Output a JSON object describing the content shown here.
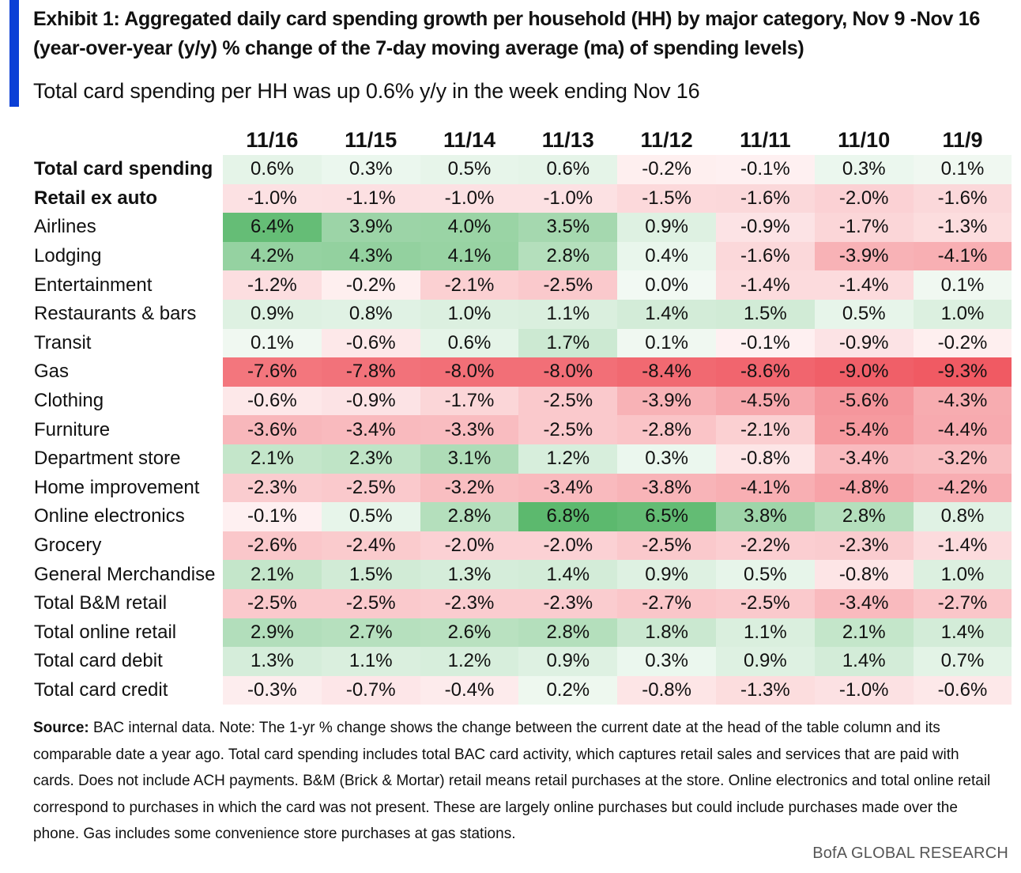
{
  "title": "Exhibit 1: Aggregated daily card spending growth per household (HH) by major category, Nov 9 -Nov 16 (year-over-year (y/y) % change of the 7-day moving average (ma) of spending levels)",
  "subtitle": "Total card spending per HH was up 0.6% y/y in the week ending Nov 16",
  "chart_data": {
    "type": "heatmap",
    "unit": "%",
    "columns": [
      "11/16",
      "11/15",
      "11/14",
      "11/13",
      "11/12",
      "11/11",
      "11/10",
      "11/9"
    ],
    "rows": [
      {
        "label": "Total card spending",
        "bold": true,
        "values": [
          0.6,
          0.3,
          0.5,
          0.6,
          -0.2,
          -0.1,
          0.3,
          0.1
        ]
      },
      {
        "label": "Retail ex auto",
        "bold": true,
        "values": [
          -1.0,
          -1.1,
          -1.0,
          -1.0,
          -1.5,
          -1.6,
          -2.0,
          -1.6
        ]
      },
      {
        "label": "Airlines",
        "values": [
          6.4,
          3.9,
          4.0,
          3.5,
          0.9,
          -0.9,
          -1.7,
          -1.3
        ]
      },
      {
        "label": "Lodging",
        "values": [
          4.2,
          4.3,
          4.1,
          2.8,
          0.4,
          -1.6,
          -3.9,
          -4.1
        ]
      },
      {
        "label": "Entertainment",
        "values": [
          -1.2,
          -0.2,
          -2.1,
          -2.5,
          0.0,
          -1.4,
          -1.4,
          0.1
        ]
      },
      {
        "label": "Restaurants & bars",
        "values": [
          0.9,
          0.8,
          1.0,
          1.1,
          1.4,
          1.5,
          0.5,
          1.0
        ]
      },
      {
        "label": "Transit",
        "values": [
          0.1,
          -0.6,
          0.6,
          1.7,
          0.1,
          -0.1,
          -0.9,
          -0.2
        ]
      },
      {
        "label": "Gas",
        "values": [
          -7.6,
          -7.8,
          -8.0,
          -8.0,
          -8.4,
          -8.6,
          -9.0,
          -9.3
        ]
      },
      {
        "label": "Clothing",
        "values": [
          -0.6,
          -0.9,
          -1.7,
          -2.5,
          -3.9,
          -4.5,
          -5.6,
          -4.3
        ]
      },
      {
        "label": "Furniture",
        "values": [
          -3.6,
          -3.4,
          -3.3,
          -2.5,
          -2.8,
          -2.1,
          -5.4,
          -4.4
        ]
      },
      {
        "label": "Department store",
        "values": [
          2.1,
          2.3,
          3.1,
          1.2,
          0.3,
          -0.8,
          -3.4,
          -3.2
        ]
      },
      {
        "label": "Home improvement",
        "values": [
          -2.3,
          -2.5,
          -3.2,
          -3.4,
          -3.8,
          -4.1,
          -4.8,
          -4.2
        ]
      },
      {
        "label": "Online electronics",
        "values": [
          -0.1,
          0.5,
          2.8,
          6.8,
          6.5,
          3.8,
          2.8,
          0.8
        ]
      },
      {
        "label": "Grocery",
        "values": [
          -2.6,
          -2.4,
          -2.0,
          -2.0,
          -2.5,
          -2.2,
          -2.3,
          -1.4
        ]
      },
      {
        "label": "General Merchandise",
        "values": [
          2.1,
          1.5,
          1.3,
          1.4,
          0.9,
          0.5,
          -0.8,
          1.0
        ]
      },
      {
        "label": "Total B&M retail",
        "values": [
          -2.5,
          -2.5,
          -2.3,
          -2.3,
          -2.7,
          -2.5,
          -3.4,
          -2.7
        ]
      },
      {
        "label": "Total online retail",
        "values": [
          2.9,
          2.7,
          2.6,
          2.8,
          1.8,
          1.1,
          2.1,
          1.4
        ]
      },
      {
        "label": "Total card debit",
        "values": [
          1.3,
          1.1,
          1.2,
          0.9,
          0.3,
          0.9,
          1.4,
          0.7
        ]
      },
      {
        "label": "Total card credit",
        "values": [
          -0.3,
          -0.7,
          -0.4,
          0.2,
          -0.8,
          -1.3,
          -1.0,
          -0.6
        ]
      }
    ],
    "color_scale": {
      "negative": "#f05a63",
      "neutral": "#ffffff",
      "positive": "#5cb96e"
    }
  },
  "footnote": {
    "source_label": "Source:",
    "text": " BAC internal data. Note: The 1-yr % change shows the change between the current date at the head of the table column and its comparable date a year ago. Total card spending includes total BAC card activity, which captures retail sales and services that are paid with cards. Does not include ACH payments. B&M (Brick & Mortar) retail means retail purchases at the store. Online electronics and total online retail correspond to purchases in which the card was not present. These are largely online purchases but could include purchases made over the phone. Gas includes some convenience store purchases at gas stations."
  },
  "brand": "BofA GLOBAL RESEARCH",
  "colors": {
    "accent": "#0b3fd6"
  }
}
